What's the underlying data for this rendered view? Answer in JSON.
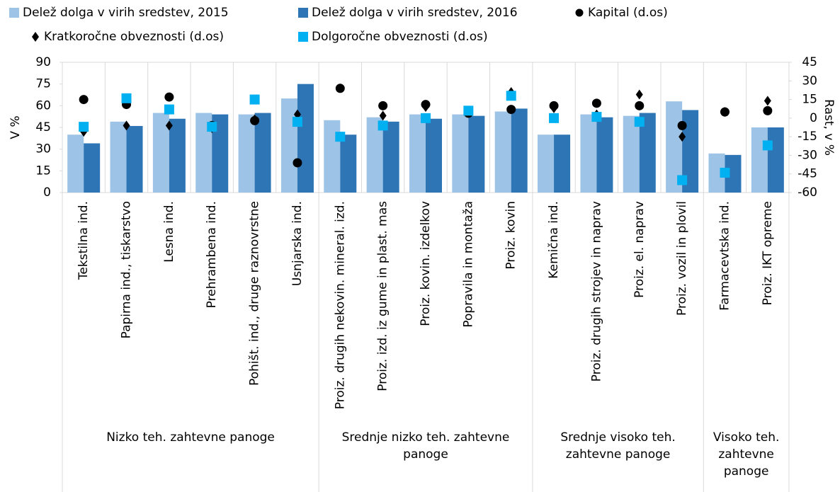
{
  "chart_data": {
    "type": "bar",
    "categories": [
      "Tekstilna ind.",
      "Papirna ind., tiskarstvo",
      "Lesna ind.",
      "Prehrambena ind.",
      "Pohišt. ind., druge raznovrstne",
      "Usnjarska ind.",
      "Proiz. drugih nekovin. mineral. izd.",
      "Proiz. izd. iz gume in plast. mas",
      "Proiz. kovin. izdelkov",
      "Popravila in montaža",
      "Proiz. kovin",
      "Kemična ind.",
      "Proiz. drugih strojev in naprav",
      "Proiz. el. naprav",
      "Proiz. vozil in plovil",
      "Farmacevtska ind.",
      "Proiz. IKT opreme"
    ],
    "groups": [
      {
        "label": "Nizko teh. zahtevne panoge",
        "count": 6
      },
      {
        "label": "Srednje nizko teh. zahtevne panoge",
        "count": 5
      },
      {
        "label": "Srednje visoko teh. zahtevne panoge",
        "count": 4
      },
      {
        "label": "Visoko teh. zahtevne panoge",
        "count": 2
      }
    ],
    "series": [
      {
        "name": "Delež dolga v virih sredstev, 2015",
        "color": "#9dc3e6",
        "marker": "bar",
        "values": [
          40,
          49,
          55,
          55,
          54,
          65,
          50,
          52,
          54,
          54,
          56,
          40,
          54,
          53,
          63,
          27,
          45
        ]
      },
      {
        "name": "Delež dolga v virih sredstev, 2016",
        "color": "#2e75b6",
        "marker": "bar",
        "values": [
          34,
          46,
          51,
          54,
          55,
          75,
          40,
          49,
          51,
          53,
          58,
          40,
          52,
          55,
          57,
          26,
          45
        ]
      },
      {
        "name": "Kapital (d.os)",
        "color": "#000000",
        "marker": "circle",
        "axis": "y2",
        "values": [
          15,
          11,
          17,
          -6,
          -2,
          -36,
          24,
          10,
          11,
          4,
          7,
          10,
          12,
          10,
          -6,
          5,
          6
        ]
      },
      {
        "name": "Kratkoročne obveznosti (d.os)",
        "color": "#000000",
        "marker": "diamond",
        "axis": "y2",
        "values": [
          -11,
          -6,
          -6,
          -8,
          -1,
          3,
          -15,
          2,
          9,
          5,
          21,
          8,
          3,
          19,
          -15,
          5,
          14
        ]
      },
      {
        "name": "Dolgoročne obveznosti (d.os)",
        "color": "#00b0f0",
        "marker": "square",
        "axis": "y2",
        "values": [
          -7,
          16,
          7,
          -7,
          15,
          -3,
          -15,
          -6,
          0,
          6,
          18,
          0,
          1,
          -3,
          -50,
          -44,
          -22
        ]
      }
    ],
    "y_label": "V %",
    "y2_label": "Rast, v %",
    "ylim": [
      0,
      90
    ],
    "yticks": [
      0,
      15,
      30,
      45,
      60,
      75,
      90
    ],
    "y2lim": [
      -60,
      45
    ],
    "y2ticks": [
      -60,
      -45,
      -30,
      -15,
      0,
      15,
      30,
      45
    ]
  }
}
